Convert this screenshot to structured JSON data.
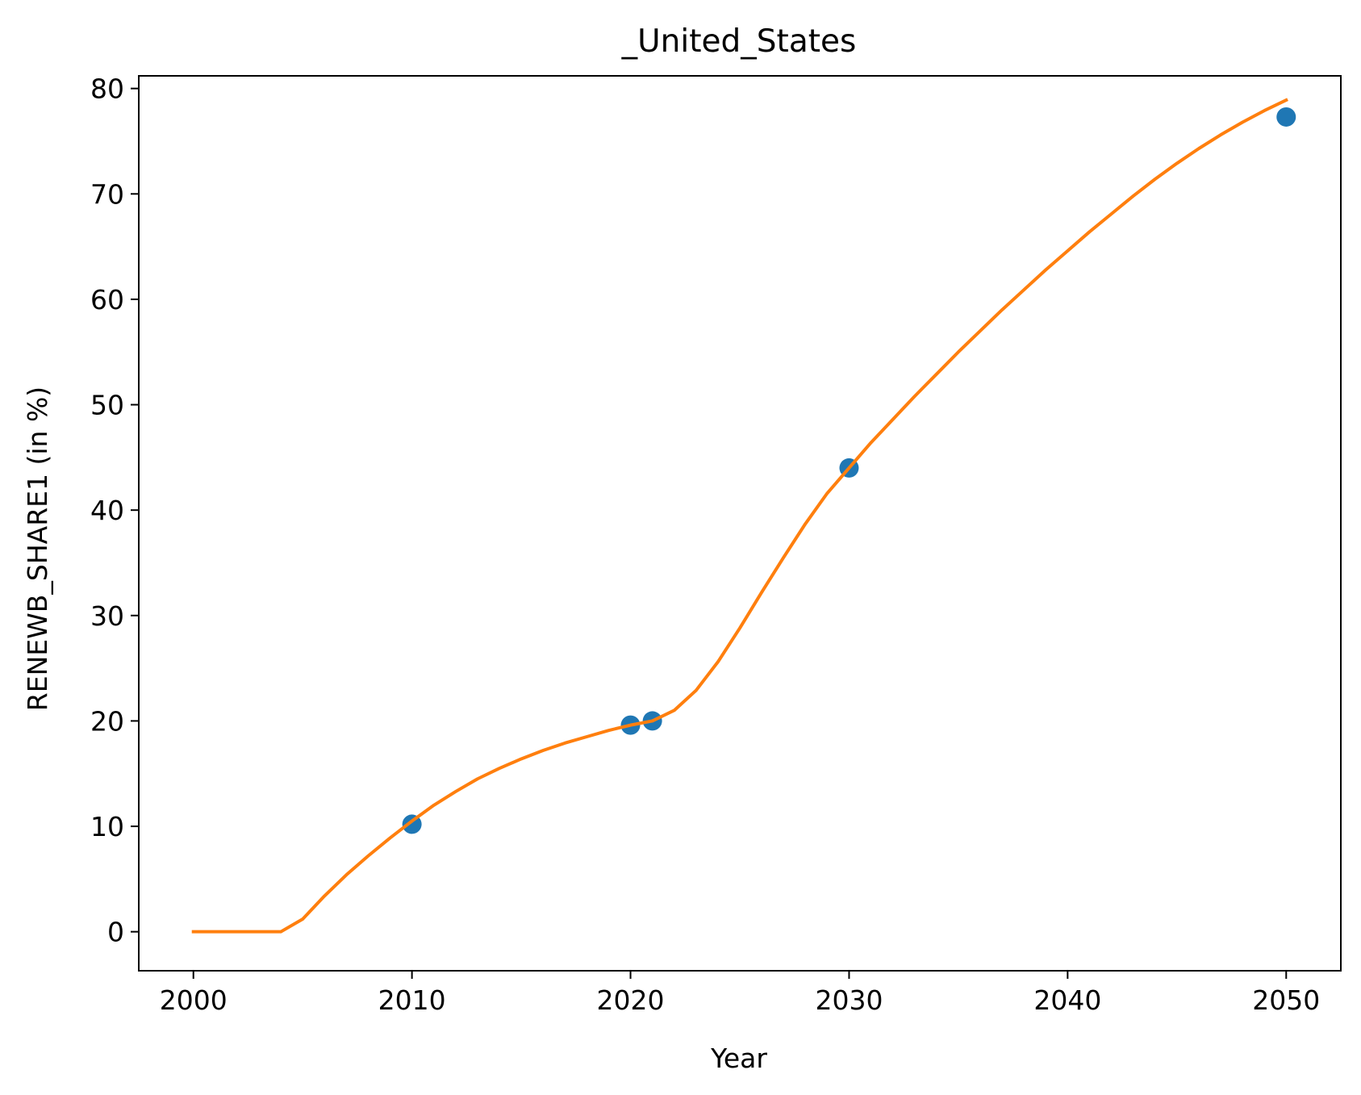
{
  "chart_data": {
    "type": "line",
    "title": "_United_States",
    "xlabel": "Year",
    "ylabel": "RENEWB_SHARE1 (in %)",
    "xlim": [
      1997.5,
      2052.5
    ],
    "ylim": [
      -3.7,
      81.2
    ],
    "x_ticks": [
      2000,
      2010,
      2020,
      2030,
      2040,
      2050
    ],
    "y_ticks": [
      0,
      10,
      20,
      30,
      40,
      50,
      60,
      70,
      80
    ],
    "grid": false,
    "legend": "none",
    "series": [
      {
        "type": "scatter",
        "color": "#1f77b4",
        "x": [
          2010,
          2020,
          2021,
          2030,
          2050
        ],
        "y": [
          10.2,
          19.6,
          20.0,
          44.0,
          77.3
        ]
      },
      {
        "type": "line",
        "color": "#ff7f0e",
        "x": [
          2000,
          2001,
          2002,
          2003,
          2004,
          2005,
          2006,
          2007,
          2008,
          2009,
          2010,
          2011,
          2012,
          2013,
          2014,
          2015,
          2016,
          2017,
          2018,
          2019,
          2020,
          2021,
          2022,
          2023,
          2024,
          2025,
          2026,
          2027,
          2028,
          2029,
          2030,
          2031,
          2032,
          2033,
          2034,
          2035,
          2036,
          2037,
          2038,
          2039,
          2040,
          2041,
          2042,
          2043,
          2044,
          2045,
          2046,
          2047,
          2048,
          2049,
          2050
        ],
        "y": [
          0,
          0,
          0,
          0,
          0,
          1.2,
          3.4,
          5.4,
          7.2,
          8.9,
          10.5,
          12.0,
          13.3,
          14.5,
          15.5,
          16.4,
          17.2,
          17.9,
          18.5,
          19.1,
          19.6,
          20.0,
          21.0,
          22.9,
          25.6,
          28.8,
          32.2,
          35.5,
          38.7,
          41.6,
          44.0,
          46.4,
          48.6,
          50.8,
          52.9,
          55.0,
          57.0,
          59.0,
          60.9,
          62.8,
          64.6,
          66.4,
          68.1,
          69.8,
          71.4,
          72.9,
          74.3,
          75.6,
          76.8,
          77.9,
          78.9
        ]
      }
    ]
  }
}
